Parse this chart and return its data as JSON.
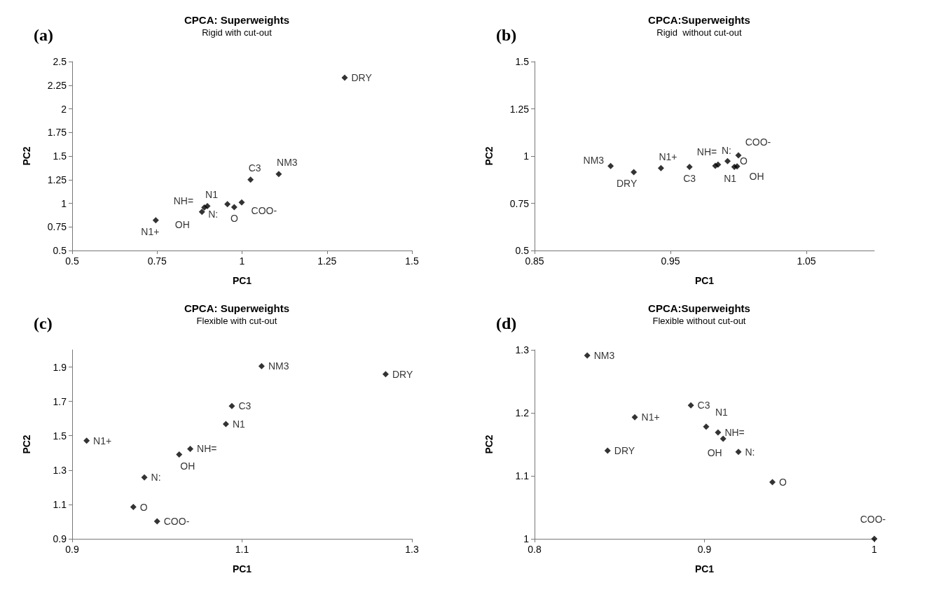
{
  "chart_data": [
    {
      "type": "scatter",
      "title": "CPCA: Superweights",
      "subtitle": "Rigid with cut-out",
      "annotations": [
        "(a)"
      ],
      "xlabel": "PC1",
      "ylabel": "PC2",
      "marker": "diamond",
      "color": "#000000",
      "xlim": [
        0.5,
        1.5
      ],
      "xticks": [
        0.5,
        0.75,
        1,
        1.25,
        1.5
      ],
      "ylim": [
        0.5,
        2.5
      ],
      "yticks": [
        0.5,
        0.75,
        1,
        1.25,
        1.5,
        1.75,
        2,
        2.25,
        2.5
      ],
      "x": [
        1.302,
        1.108,
        1.025,
        0.999,
        0.977,
        0.957,
        0.898,
        0.889,
        0.882,
        0.746
      ],
      "values": [
        2.33,
        1.31,
        1.25,
        1.01,
        0.96,
        0.99,
        0.97,
        0.955,
        0.91,
        0.82
      ],
      "value_labels": [
        "DRY",
        "NM3",
        "C3",
        "COO-",
        "O",
        "N:",
        "N1",
        "NH=",
        "OH",
        "N1+"
      ]
    },
    {
      "type": "scatter",
      "title": "CPCA:Superweights",
      "subtitle": "Rigid  without cut-out",
      "annotations": [
        "(b)"
      ],
      "xlabel": "PC1",
      "ylabel": "PC2",
      "marker": "diamond",
      "color": "#000000",
      "xlim": [
        0.85,
        1.1
      ],
      "xticks": [
        0.85,
        0.95,
        1.05
      ],
      "ylim": [
        0.5,
        1.5
      ],
      "yticks": [
        0.5,
        0.75,
        1,
        1.25,
        1.5
      ],
      "x": [
        0.906,
        0.923,
        0.943,
        0.964,
        0.983,
        0.985,
        0.992,
        0.997,
        0.999,
        1.0
      ],
      "values": [
        0.947,
        0.915,
        0.936,
        0.943,
        0.948,
        0.955,
        0.973,
        0.943,
        0.945,
        1.004
      ],
      "value_labels": [
        "NM3",
        "DRY",
        "N1+",
        "C3",
        "NH=",
        "N:",
        "O",
        "N1",
        "OH",
        "COO-"
      ]
    },
    {
      "type": "scatter",
      "title": "CPCA: Superweights",
      "subtitle": "Flexible with cut-out",
      "annotations": [
        "(c)"
      ],
      "xlabel": "PC1",
      "ylabel": "PC2",
      "marker": "diamond",
      "color": "#000000",
      "xlim": [
        0.9,
        1.3
      ],
      "xticks": [
        0.9,
        1.1,
        1.3
      ],
      "ylim": [
        0.9,
        2.0
      ],
      "yticks": [
        0.9,
        1.1,
        1.3,
        1.5,
        1.7,
        1.9
      ],
      "x": [
        1.123,
        1.269,
        1.088,
        1.081,
        0.917,
        1.039,
        1.026,
        0.985,
        0.972,
        1.0
      ],
      "values": [
        1.905,
        1.858,
        1.673,
        1.568,
        1.471,
        1.424,
        1.391,
        1.257,
        1.085,
        1.002
      ],
      "value_labels": [
        "NM3",
        "DRY",
        "C3",
        "N1",
        "N1+",
        "NH=",
        "OH",
        "N:",
        "O",
        "COO-"
      ]
    },
    {
      "type": "scatter",
      "title": "CPCA:Superweights",
      "subtitle": "Flexible without cut-out",
      "annotations": [
        "(d)"
      ],
      "xlabel": "PC1",
      "ylabel": "PC2",
      "marker": "diamond",
      "color": "#000000",
      "xlim": [
        0.8,
        1.0
      ],
      "xticks": [
        0.8,
        0.9,
        1
      ],
      "ylim": [
        1.0,
        1.3
      ],
      "yticks": [
        1,
        1.1,
        1.2,
        1.3
      ],
      "x": [
        0.831,
        0.892,
        0.859,
        0.901,
        0.908,
        0.911,
        0.843,
        0.92,
        0.94,
        1.0
      ],
      "values": [
        1.291,
        1.212,
        1.193,
        1.178,
        1.169,
        1.159,
        1.14,
        1.138,
        1.09,
        1.0
      ],
      "value_labels": [
        "NM3",
        "C3",
        "N1+",
        "N1",
        "NH=",
        "OH",
        "DRY",
        "N:",
        "O",
        "COO-"
      ]
    }
  ]
}
